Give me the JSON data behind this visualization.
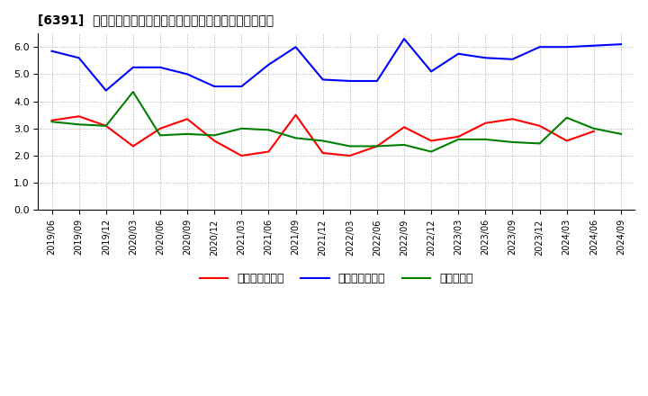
{
  "title": "[6391]  売上債権回転率、買入債務回転率、在庫回転率の推移",
  "x_labels": [
    "2019/06",
    "2019/09",
    "2019/12",
    "2020/03",
    "2020/06",
    "2020/09",
    "2020/12",
    "2021/03",
    "2021/06",
    "2021/09",
    "2021/12",
    "2022/03",
    "2022/06",
    "2022/09",
    "2022/12",
    "2023/03",
    "2023/06",
    "2023/09",
    "2023/12",
    "2024/03",
    "2024/06",
    "2024/09"
  ],
  "売上債権回転率": [
    3.3,
    3.45,
    3.1,
    2.35,
    3.0,
    3.35,
    2.55,
    2.0,
    2.15,
    3.5,
    2.1,
    2.0,
    2.35,
    3.05,
    2.55,
    2.7,
    3.2,
    3.35,
    3.1,
    2.55,
    2.9,
    null
  ],
  "買入債務回転率": [
    5.85,
    5.6,
    4.4,
    5.25,
    5.25,
    5.0,
    4.55,
    4.55,
    5.35,
    6.0,
    4.8,
    4.75,
    4.75,
    6.3,
    5.1,
    5.75,
    5.6,
    5.55,
    6.0,
    6.0,
    6.05,
    6.1
  ],
  "在庫回転率": [
    3.25,
    3.15,
    3.1,
    4.35,
    2.75,
    2.8,
    2.75,
    3.0,
    2.95,
    2.65,
    2.55,
    2.35,
    2.35,
    2.4,
    2.15,
    2.6,
    2.6,
    2.5,
    2.45,
    3.4,
    3.0,
    2.8
  ],
  "colors": {
    "売上債権回転率": "#ff0000",
    "買入債務回転率": "#0000ff",
    "在庫回転率": "#008000"
  },
  "ylim": [
    0.0,
    6.5
  ],
  "yticks": [
    0.0,
    1.0,
    2.0,
    3.0,
    4.0,
    5.0,
    6.0
  ],
  "background_color": "#ffffff",
  "plot_bg_color": "#ffffff",
  "grid_color": "#aaaaaa",
  "legend_labels": [
    "売上債権回転率",
    "買入債務回転率",
    "在庫回転率"
  ]
}
